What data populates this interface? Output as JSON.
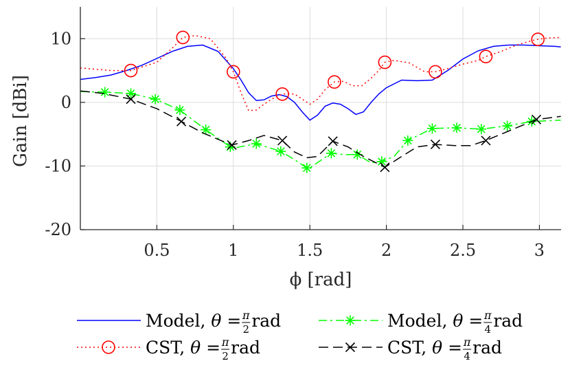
{
  "chart_data": {
    "type": "line",
    "xlabel": "ϕ [rad]",
    "ylabel": "Gain [dBi]",
    "xlim": [
      0.0,
      3.14159
    ],
    "ylim": [
      -20,
      15
    ],
    "grid": true,
    "x_ticks": [
      0.5,
      1,
      1.5,
      2,
      2.5,
      3
    ],
    "x_tick_labels": [
      "0.5",
      "1",
      "1.5",
      "2",
      "2.5",
      "3"
    ],
    "y_ticks": [
      -20,
      -10,
      0,
      10
    ],
    "y_tick_labels": [
      "-20",
      "-10",
      "0",
      "10"
    ],
    "legend_position": "bottom-outside",
    "series": [
      {
        "name": "Model, θ = π/2 rad",
        "legend_prefix": "Model, ",
        "legend_rest": " rad",
        "theta_den": "2",
        "color": "#0000ff",
        "style": "solid",
        "marker": "none",
        "x": [
          0.0,
          0.1,
          0.2,
          0.3,
          0.4,
          0.5,
          0.6,
          0.7,
          0.8,
          0.9,
          1.0,
          1.05,
          1.1,
          1.15,
          1.2,
          1.25,
          1.3,
          1.35,
          1.4,
          1.45,
          1.5,
          1.55,
          1.6,
          1.65,
          1.7,
          1.75,
          1.8,
          1.85,
          1.9,
          1.95,
          2.0,
          2.1,
          2.2,
          2.3,
          2.4,
          2.5,
          2.6,
          2.7,
          2.8,
          2.9,
          3.0,
          3.1,
          3.14
        ],
        "y": [
          3.6,
          3.9,
          4.3,
          5.0,
          5.8,
          6.9,
          8.0,
          8.8,
          9.0,
          8.0,
          5.3,
          3.5,
          1.5,
          0.3,
          0.4,
          1.0,
          1.2,
          0.9,
          0.0,
          -1.5,
          -2.8,
          -2.0,
          -0.6,
          -0.1,
          -0.3,
          -1.0,
          -1.9,
          -1.5,
          0.0,
          1.3,
          2.3,
          3.5,
          3.4,
          3.5,
          5.0,
          6.8,
          8.1,
          8.8,
          9.0,
          9.0,
          8.9,
          8.8,
          8.7
        ]
      },
      {
        "name": "CST, θ = π/2 rad",
        "legend_prefix": "CST, ",
        "legend_rest": " rad",
        "theta_den": "2",
        "color": "#ff0000",
        "style": "dotted",
        "marker": "circle",
        "x": [
          0.0,
          0.1,
          0.2,
          0.33,
          0.5,
          0.6,
          0.67,
          0.75,
          0.85,
          0.95,
          1.0,
          1.05,
          1.1,
          1.15,
          1.2,
          1.25,
          1.32,
          1.4,
          1.45,
          1.5,
          1.55,
          1.6,
          1.66,
          1.72,
          1.78,
          1.84,
          1.9,
          1.95,
          1.99,
          2.05,
          2.15,
          2.25,
          2.32,
          2.4,
          2.5,
          2.6,
          2.65,
          2.75,
          2.85,
          2.95,
          2.99,
          3.05,
          3.14
        ],
        "y": [
          5.4,
          5.2,
          5.0,
          5.0,
          6.3,
          8.5,
          10.2,
          10.5,
          10.0,
          7.0,
          4.8,
          1.5,
          -1.3,
          -1.2,
          -0.3,
          0.5,
          1.3,
          1.3,
          0.5,
          -0.3,
          0.5,
          2.0,
          3.2,
          3.3,
          2.6,
          2.6,
          3.8,
          5.0,
          6.3,
          6.6,
          6.2,
          4.8,
          4.8,
          5.3,
          6.0,
          6.6,
          7.2,
          8.0,
          9.0,
          9.7,
          9.9,
          10.1,
          10.2
        ],
        "marker_x": [
          0.33,
          0.67,
          1.0,
          1.32,
          1.66,
          1.99,
          2.32,
          2.65,
          2.99
        ],
        "marker_y": [
          5.0,
          10.2,
          4.8,
          1.3,
          3.2,
          6.3,
          4.8,
          7.2,
          9.9
        ]
      },
      {
        "name": "Model, θ = π/4 rad",
        "legend_prefix": "Model, ",
        "legend_rest": " rad",
        "theta_den": "4",
        "color": "#00ff00",
        "style": "dashdot",
        "marker": "asterisk",
        "x": [
          0.0,
          0.16,
          0.33,
          0.49,
          0.65,
          0.82,
          0.98,
          1.0,
          1.15,
          1.31,
          1.4,
          1.48,
          1.5,
          1.56,
          1.64,
          1.72,
          1.81,
          1.9,
          1.97,
          2.05,
          2.14,
          2.3,
          2.46,
          2.62,
          2.79,
          2.95,
          3.14
        ],
        "y": [
          1.7,
          1.6,
          1.4,
          0.5,
          -1.2,
          -4.3,
          -7.0,
          -7.2,
          -6.5,
          -7.7,
          -9.0,
          -10.3,
          -10.3,
          -9.3,
          -8.0,
          -8.2,
          -8.2,
          -9.5,
          -9.3,
          -8.5,
          -6.0,
          -4.1,
          -4.0,
          -4.2,
          -3.7,
          -3.0,
          -2.8
        ],
        "marker_x": [
          0.16,
          0.33,
          0.49,
          0.65,
          0.82,
          0.98,
          1.15,
          1.31,
          1.48,
          1.64,
          1.81,
          1.97,
          2.14,
          2.3,
          2.46,
          2.62,
          2.79,
          2.95
        ],
        "marker_y": [
          1.6,
          1.4,
          0.5,
          -1.2,
          -4.3,
          -7.0,
          -6.5,
          -7.7,
          -10.3,
          -8.0,
          -8.2,
          -9.3,
          -6.0,
          -4.1,
          -4.0,
          -4.2,
          -3.7,
          -3.0
        ]
      },
      {
        "name": "CST, θ = π/4 rad",
        "legend_prefix": "CST, ",
        "legend_rest": " rad",
        "theta_den": "4",
        "color": "#000000",
        "style": "dashed",
        "marker": "cross",
        "x": [
          0.0,
          0.15,
          0.33,
          0.5,
          0.66,
          0.8,
          0.99,
          1.1,
          1.2,
          1.32,
          1.4,
          1.48,
          1.55,
          1.65,
          1.75,
          1.85,
          1.99,
          2.1,
          2.2,
          2.32,
          2.45,
          2.55,
          2.65,
          2.8,
          2.98,
          3.14
        ],
        "y": [
          1.8,
          1.4,
          0.5,
          -1.0,
          -3.0,
          -4.8,
          -6.7,
          -6.0,
          -5.2,
          -6.0,
          -7.8,
          -8.7,
          -8.5,
          -6.1,
          -7.0,
          -8.5,
          -10.2,
          -8.5,
          -7.0,
          -6.6,
          -6.8,
          -6.8,
          -6.0,
          -4.5,
          -2.7,
          -2.2
        ],
        "marker_x": [
          0.33,
          0.66,
          0.99,
          1.32,
          1.65,
          1.99,
          2.32,
          2.65,
          2.98
        ],
        "marker_y": [
          0.5,
          -3.0,
          -6.7,
          -6.0,
          -6.1,
          -10.2,
          -6.6,
          -6.0,
          -2.7
        ]
      }
    ]
  }
}
